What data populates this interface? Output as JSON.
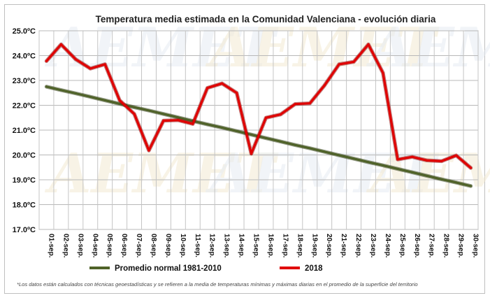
{
  "chart_data": {
    "type": "line",
    "title": "Temperatura media estimada en la Comunidad Valenciana - evolución diaria",
    "xlabel": "",
    "ylabel": "",
    "ylim": [
      17.0,
      25.0
    ],
    "ytick_step": 1.0,
    "ytick_labels": [
      "17.0ºC",
      "18.0ºC",
      "19.0ºC",
      "20.0ºC",
      "21.0ºC",
      "22.0ºC",
      "23.0ºC",
      "24.0ºC",
      "25.0ºC"
    ],
    "categories": [
      "01-sep.",
      "02-sep.",
      "03-sep.",
      "04-sep.",
      "05-sep.",
      "06-sep.",
      "07-sep.",
      "08-sep.",
      "09-sep.",
      "10-sep.",
      "11-sep.",
      "12-sep.",
      "13-sep.",
      "14-sep.",
      "15-sep.",
      "16-sep.",
      "17-sep.",
      "18-sep.",
      "19-sep.",
      "20-sep.",
      "21-sep.",
      "22-sep.",
      "23-sep.",
      "24-sep.",
      "25-sep.",
      "26-sep.",
      "27-sep.",
      "28-sep.",
      "29-sep.",
      "30-sep."
    ],
    "grid": true,
    "legend_position": "bottom",
    "series": [
      {
        "name": "Promedio normal 1981-2010",
        "color": "#4f6228",
        "values": [
          22.75,
          22.61,
          22.48,
          22.34,
          22.2,
          22.06,
          21.92,
          21.79,
          21.65,
          21.51,
          21.37,
          21.23,
          21.1,
          20.96,
          20.82,
          20.68,
          20.54,
          20.4,
          20.27,
          20.13,
          19.99,
          19.85,
          19.71,
          19.58,
          19.44,
          19.3,
          19.16,
          19.02,
          18.89,
          18.75
        ]
      },
      {
        "name": "2018",
        "color": "#e00000",
        "values": [
          23.78,
          24.45,
          23.85,
          23.48,
          23.65,
          22.2,
          21.65,
          20.18,
          21.38,
          21.4,
          21.25,
          22.7,
          22.88,
          22.5,
          20.05,
          21.5,
          21.63,
          22.05,
          22.08,
          22.8,
          23.65,
          23.75,
          24.45,
          23.3,
          19.82,
          19.92,
          19.78,
          19.75,
          19.98,
          19.48
        ]
      }
    ]
  },
  "footnote": "*Los datos están calculados con técnicas geoestadísticas y se refieren a la media de temperaturas mínimas y máximas diarias en el promedio de la superficie del territorio",
  "watermark_text": "AEMET"
}
